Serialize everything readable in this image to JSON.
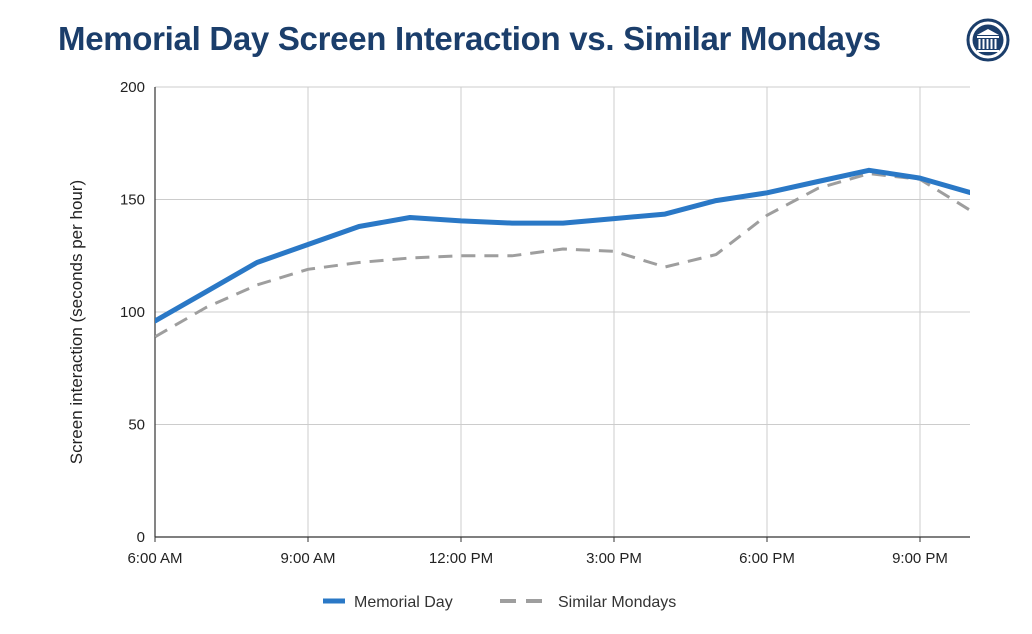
{
  "chart_data": {
    "type": "line",
    "title": "Memorial Day Screen Interaction vs. Similar Mondays",
    "ylabel": "Screen interaction (seconds per hour)",
    "xlabel": "",
    "x": [
      "6:00 AM",
      "7:00 AM",
      "8:00 AM",
      "9:00 AM",
      "10:00 AM",
      "11:00 AM",
      "12:00 PM",
      "1:00 PM",
      "2:00 PM",
      "3:00 PM",
      "4:00 PM",
      "5:00 PM",
      "6:00 PM",
      "7:00 PM",
      "8:00 PM",
      "9:00 PM",
      "10:00 PM"
    ],
    "x_ticks": [
      "6:00 AM",
      "9:00 AM",
      "12:00 PM",
      "3:00 PM",
      "6:00 PM",
      "9:00 PM"
    ],
    "ylim": [
      0,
      200
    ],
    "y_ticks": [
      0,
      50,
      100,
      150,
      200
    ],
    "grid": true,
    "legend_position": "bottom",
    "series": [
      {
        "name": "Memorial Day",
        "color": "#2a78c6",
        "style": "solid",
        "values": [
          96,
          109,
          122,
          130,
          138,
          142,
          140.5,
          139.5,
          139.5,
          141.5,
          143.5,
          149.5,
          153,
          158,
          163,
          159.5,
          153
        ]
      },
      {
        "name": "Similar Mondays",
        "color": "#9e9e9e",
        "style": "dashed",
        "values": [
          89,
          102,
          112,
          119,
          122,
          124,
          125,
          125,
          128,
          127,
          120,
          125.5,
          143,
          155,
          161.5,
          159,
          145
        ]
      }
    ]
  },
  "colors": {
    "title": "#1b3e6b",
    "grid": "#cccccc",
    "axis": "#333333"
  },
  "icons": {
    "logo": "institution-columns-icon"
  }
}
